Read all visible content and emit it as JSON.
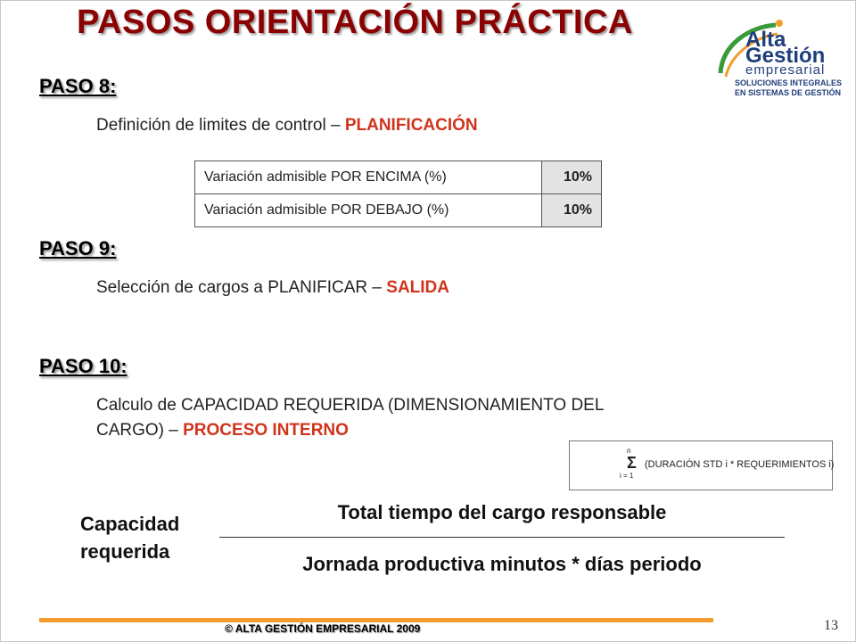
{
  "slide": {
    "title": "PASOS ORIENTACIÓN PRÁCTICA"
  },
  "logo": {
    "line1": "Alta",
    "line2": "Gestión",
    "line3": "empresarial",
    "tagline1": "SOLUCIONES INTEGRALES",
    "tagline2": "EN SISTEMAS DE GESTIÓN",
    "colors": {
      "blue": "#1f3f7a",
      "orange": "#f39b2c",
      "green": "#3a9a3a"
    }
  },
  "paso8": {
    "heading": "PASO 8:",
    "text": "Definición de limites de control – ",
    "accent": "PLANIFICACIÓN",
    "table": [
      {
        "label": "Variación admisible POR ENCIMA (%)",
        "value": "10%"
      },
      {
        "label": "Variación admisible POR DEBAJO (%)",
        "value": "10%"
      }
    ]
  },
  "paso9": {
    "heading": "PASO 9:",
    "text": "Selección de cargos a PLANIFICAR – ",
    "accent": "SALIDA"
  },
  "paso10": {
    "heading": "PASO 10:",
    "text_line1": "Calculo de CAPACIDAD REQUERIDA (DIMENSIONAMIENTO DEL",
    "text_line2": "CARGO) – ",
    "accent": "PROCESO INTERNO"
  },
  "formula": {
    "upper": "n",
    "sigma": "Σ",
    "expression": "(DURACIÓN STD i * REQUERIMIENTOS i)",
    "lower": "i = 1"
  },
  "capacity": {
    "label_line1": "Capacidad",
    "label_line2": "requerida",
    "numerator": "Total tiempo del cargo responsable",
    "denominator": "Jornada productiva minutos * días periodo"
  },
  "footer": {
    "copyright": "© ALTA GESTIÓN EMPRESARIAL 2009",
    "page_number": "13",
    "accent_color": "#f39b2c"
  }
}
